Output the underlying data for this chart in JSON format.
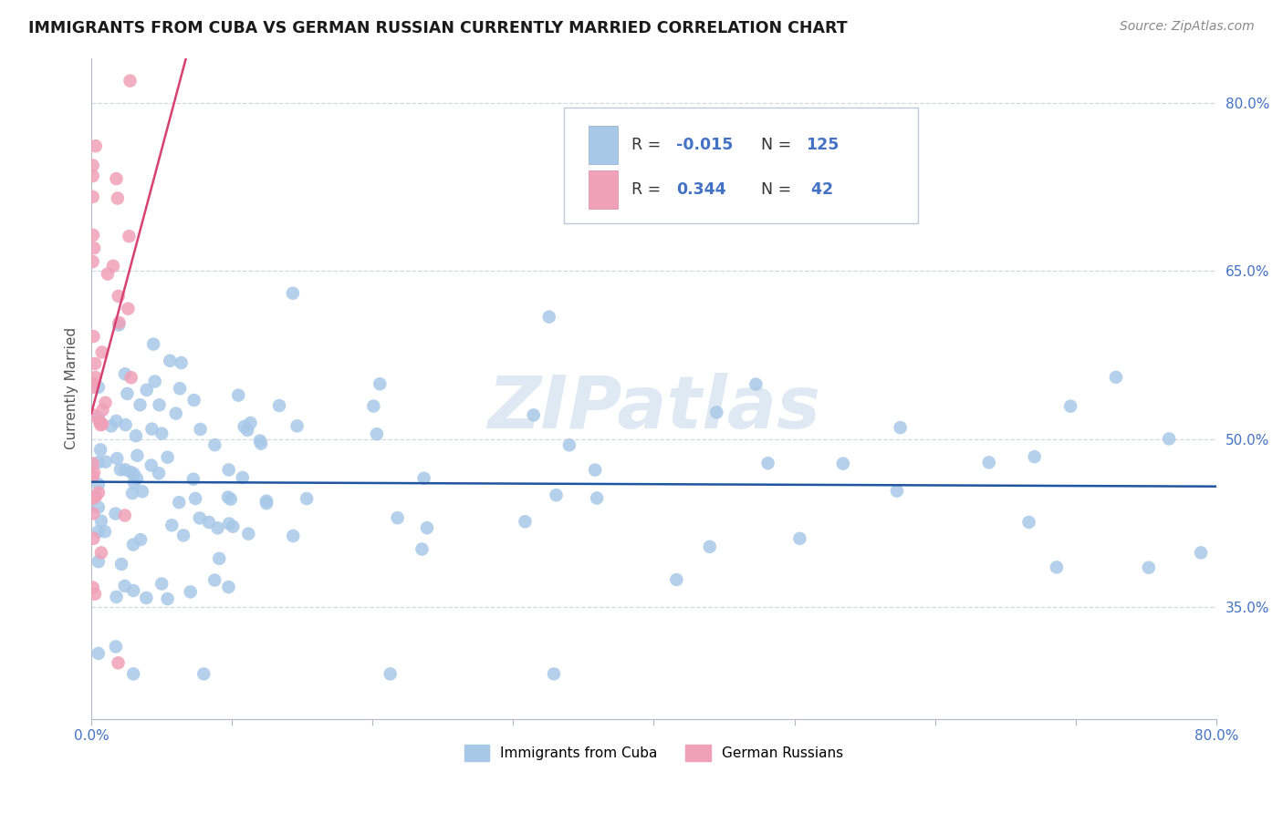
{
  "title": "IMMIGRANTS FROM CUBA VS GERMAN RUSSIAN CURRENTLY MARRIED CORRELATION CHART",
  "source": "Source: ZipAtlas.com",
  "ylabel": "Currently Married",
  "x_min": 0.0,
  "x_max": 0.8,
  "y_min": 0.25,
  "y_max": 0.84,
  "y_ticks": [
    0.35,
    0.5,
    0.65,
    0.8
  ],
  "y_tick_labels": [
    "35.0%",
    "50.0%",
    "65.0%",
    "80.0%"
  ],
  "cuba_color": "#a8c8e8",
  "cuba_line_color": "#2055a0",
  "german_color": "#f0a0b8",
  "german_line_color": "#d84070",
  "cuba_R": -0.015,
  "cuba_N": 125,
  "german_R": 0.344,
  "german_N": 42,
  "watermark": "ZIPatlas",
  "legend_label_cuba": "Immigrants from Cuba",
  "legend_label_german": "German Russians"
}
